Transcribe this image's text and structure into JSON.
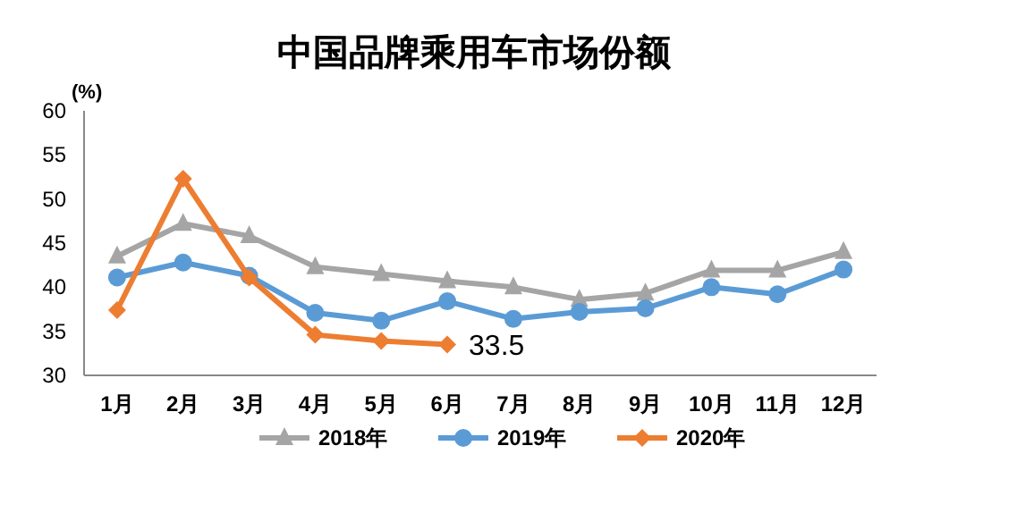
{
  "chart_data": {
    "type": "line",
    "title": "中国品牌乘用车市场份额",
    "ylabel": "(%)",
    "categories": [
      "1月",
      "2月",
      "3月",
      "4月",
      "5月",
      "6月",
      "7月",
      "8月",
      "9月",
      "10月",
      "11月",
      "12月"
    ],
    "series": [
      {
        "name": "2018年",
        "color": "#a5a5a5",
        "marker": "triangle",
        "values": [
          43.5,
          47.2,
          45.8,
          42.3,
          41.5,
          40.7,
          40.0,
          38.6,
          39.3,
          41.9,
          41.9,
          44.0
        ]
      },
      {
        "name": "2019年",
        "color": "#5b9bd5",
        "marker": "circle",
        "values": [
          41.1,
          42.8,
          41.3,
          37.1,
          36.2,
          38.4,
          36.4,
          37.2,
          37.6,
          40.0,
          39.2,
          42.0
        ]
      },
      {
        "name": "2020年",
        "color": "#ed7d31",
        "marker": "diamond",
        "values": [
          37.4,
          52.3,
          41.1,
          34.6,
          33.9,
          33.5,
          null,
          null,
          null,
          null,
          null,
          null
        ]
      }
    ],
    "annotations": [
      {
        "text": "33.5",
        "x": "6月",
        "y": 33.5
      }
    ],
    "ylim": [
      30,
      60
    ],
    "yticks": [
      30,
      35,
      40,
      45,
      50,
      55,
      60
    ],
    "grid": false,
    "legend": "bottom",
    "line_style": "solid"
  }
}
